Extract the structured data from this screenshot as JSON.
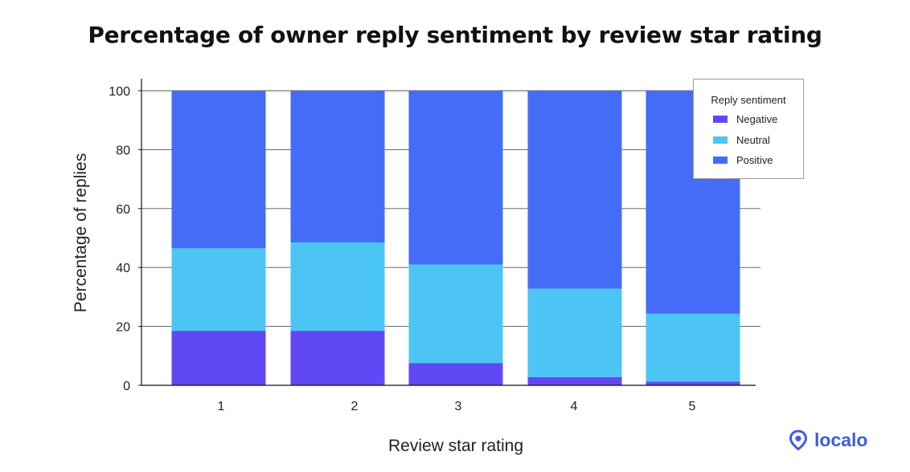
{
  "chart_data": {
    "type": "bar",
    "stacked": true,
    "title": "Percentage of owner reply sentiment by review star rating",
    "xlabel": "Review star rating",
    "ylabel": "Percentage of replies",
    "categories": [
      "1",
      "2",
      "3",
      "4",
      "5"
    ],
    "ylim": [
      0,
      100
    ],
    "yticks": [
      "0",
      "20",
      "40",
      "60",
      "80",
      "100"
    ],
    "grid": true,
    "legend_title": "Reply sentiment",
    "legend_position": "top-right",
    "series": [
      {
        "name": "Negative",
        "color": "#6148f5",
        "values": [
          18.5,
          18.5,
          7.5,
          2.8,
          1.3
        ]
      },
      {
        "name": "Neutral",
        "color": "#4cc5f5",
        "values": [
          28.0,
          30.0,
          33.5,
          30.0,
          23.0
        ]
      },
      {
        "name": "Positive",
        "color": "#456cf6",
        "values": [
          53.5,
          51.5,
          59.0,
          67.2,
          75.7
        ]
      }
    ]
  },
  "brand": {
    "name": "localo",
    "icon": "location-pin-icon",
    "color": "#3d5ce0"
  }
}
